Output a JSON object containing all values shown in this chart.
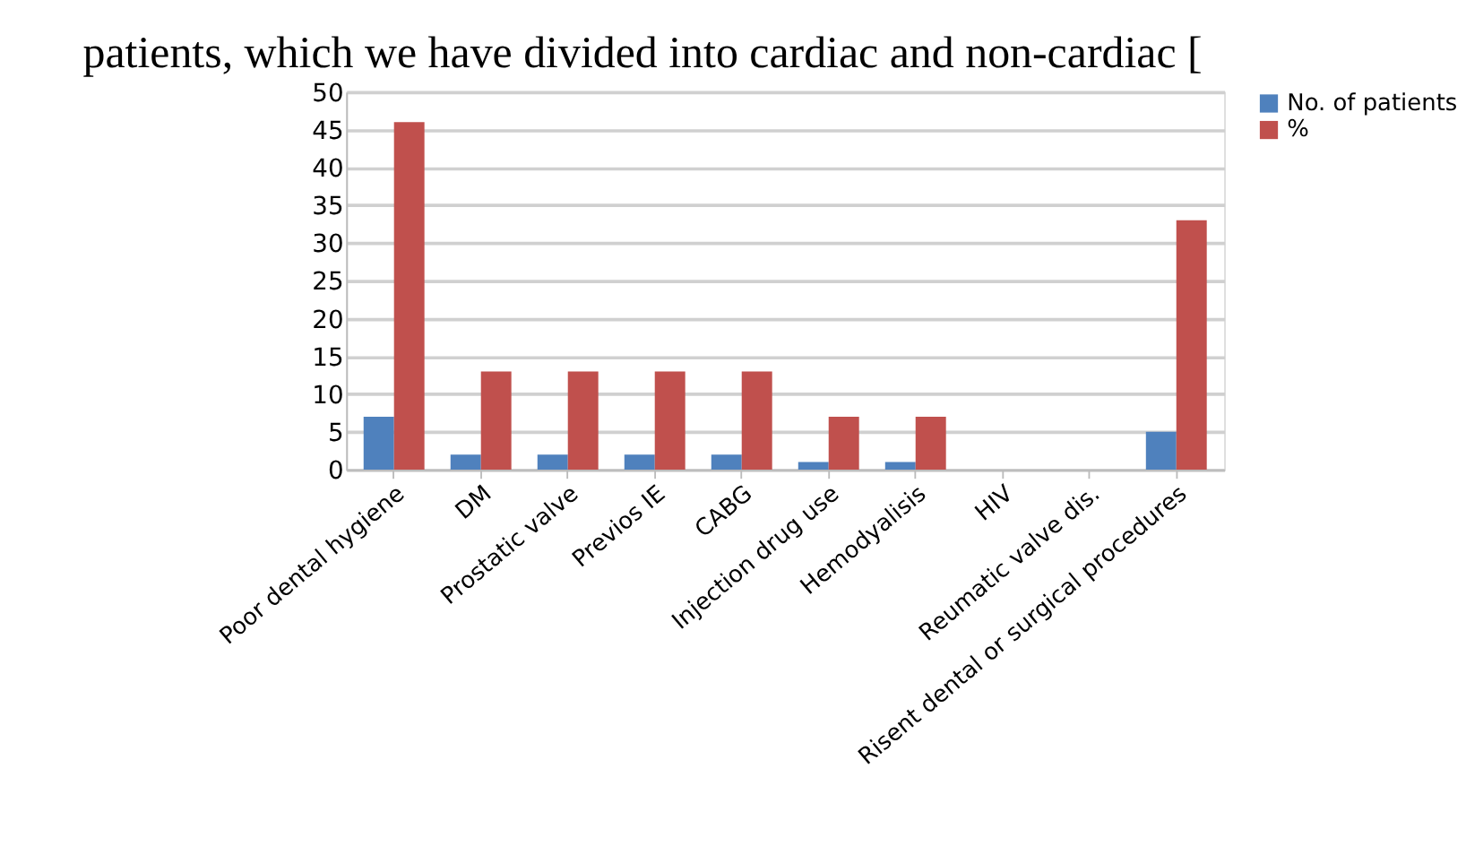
{
  "chart_data": {
    "type": "bar",
    "annotations": [
      "patients, which we have divided into cardiac and non-cardiac ["
    ],
    "categories": [
      "Poor dental hygiene",
      "DM",
      "Prostatic valve",
      "Previos IE",
      "CABG",
      "Injection drug use",
      "Hemodyalisis",
      "HIV",
      "Reumatic valve dis.",
      "Risent dental or surgical procedures"
    ],
    "series": [
      {
        "name": "No. of patients",
        "color": "#4f81bd",
        "values": [
          7,
          2,
          2,
          2,
          2,
          1,
          1,
          0,
          0,
          5
        ]
      },
      {
        "name": "%",
        "color": "#c0504d",
        "values": [
          46,
          13,
          13,
          13,
          13,
          7,
          7,
          0,
          0,
          33
        ]
      }
    ],
    "ylim": [
      0,
      50
    ],
    "yticks": [
      0,
      5,
      10,
      15,
      20,
      25,
      30,
      35,
      40,
      45,
      50
    ],
    "grid": "y",
    "legend": "right"
  }
}
